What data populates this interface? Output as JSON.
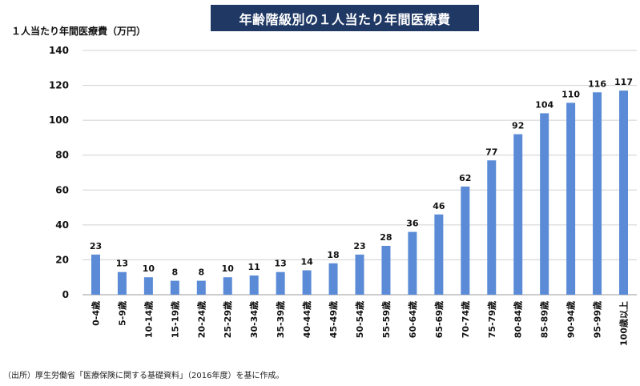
{
  "title": "年齢階級別の１人当たり年間医療費",
  "source_note": "（出所）厚生労働省「医療保険に関する基礎資料」（2016年度）を基に作成。",
  "chart_data": {
    "type": "bar",
    "title": "年齢階級別の１人当たり年間医療費",
    "xlabel": "",
    "ylabel": "１人当たり年間医療費（万円）",
    "ylim": [
      0,
      140
    ],
    "yticks": [
      0,
      20,
      40,
      60,
      80,
      100,
      120,
      140
    ],
    "grid": true,
    "bar_color": "#5b8bd6",
    "categories": [
      "0-4歳",
      "5-9歳",
      "10-14歳",
      "15-19歳",
      "20-24歳",
      "25-29歳",
      "30-34歳",
      "35-39歳",
      "40-44歳",
      "45-49歳",
      "50-54歳",
      "55-59歳",
      "60-64歳",
      "65-69歳",
      "70-74歳",
      "75-79歳",
      "80-84歳",
      "85-89歳",
      "90-94歳",
      "95-99歳",
      "100歳以上"
    ],
    "values": [
      23,
      13,
      10,
      8,
      8,
      10,
      11,
      13,
      14,
      18,
      23,
      28,
      36,
      46,
      62,
      77,
      92,
      104,
      110,
      116,
      117
    ]
  }
}
